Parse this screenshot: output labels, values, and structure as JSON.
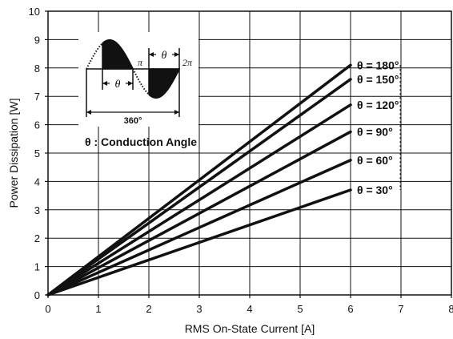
{
  "chart_data": {
    "type": "line",
    "xlabel": "RMS On-State Current [A]",
    "ylabel": "Power Dissipation [W]",
    "xlim": [
      0,
      8
    ],
    "ylim": [
      0,
      10
    ],
    "x_ticks": [
      "0",
      "1",
      "2",
      "3",
      "4",
      "5",
      "6",
      "7",
      "8"
    ],
    "y_ticks": [
      "0",
      "1",
      "2",
      "3",
      "4",
      "5",
      "6",
      "7",
      "8",
      "9",
      "10"
    ],
    "grid": true,
    "series": [
      {
        "name": "θ = 180°",
        "x": [
          0,
          6
        ],
        "y": [
          0,
          8.1
        ]
      },
      {
        "name": "θ = 150°",
        "x": [
          0,
          6
        ],
        "y": [
          0,
          7.6
        ]
      },
      {
        "name": "θ = 120°",
        "x": [
          0,
          6
        ],
        "y": [
          0,
          6.7
        ]
      },
      {
        "name": "θ = 90°",
        "x": [
          0,
          6
        ],
        "y": [
          0,
          5.75
        ]
      },
      {
        "name": "θ = 60°",
        "x": [
          0,
          6
        ],
        "y": [
          0,
          4.75
        ]
      },
      {
        "name": "θ = 30°",
        "x": [
          0,
          6
        ],
        "y": [
          0,
          3.7
        ]
      }
    ],
    "annotations": {
      "theta": "θ",
      "pi": "π",
      "two_pi": "2π",
      "degrees": "360°",
      "conduction": "θ : Conduction Angle"
    }
  }
}
